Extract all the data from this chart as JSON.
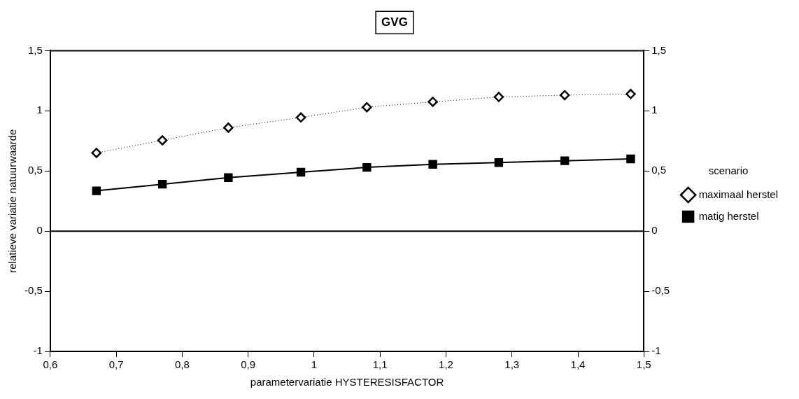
{
  "chart_data": {
    "type": "line",
    "title": "GVG",
    "xlabel": "parametervariatie HYSTERESISFACTOR",
    "ylabel": "relatieve variatie natuurwaarde",
    "legend_title": "scenario",
    "legend": "right",
    "grid": false,
    "x": [
      0.67,
      0.77,
      0.87,
      0.98,
      1.08,
      1.18,
      1.28,
      1.38,
      1.48
    ],
    "series": [
      {
        "name": "maximaal herstel",
        "color": "#000000",
        "marker": "diamond",
        "line_style": "dotted",
        "values": [
          0.65,
          0.755,
          0.86,
          0.945,
          1.03,
          1.075,
          1.115,
          1.13,
          1.14
        ]
      },
      {
        "name": "matig herstel",
        "color": "#000000",
        "marker": "square",
        "line_style": "solid",
        "values": [
          0.335,
          0.39,
          0.445,
          0.49,
          0.53,
          0.555,
          0.57,
          0.585,
          0.6
        ]
      }
    ],
    "xlim": [
      0.6,
      1.5
    ],
    "xticks": [
      {
        "value": 0.6,
        "label": "0,6"
      },
      {
        "value": 0.7,
        "label": "0,7"
      },
      {
        "value": 0.8,
        "label": "0,8"
      },
      {
        "value": 0.9,
        "label": "0,9"
      },
      1,
      {
        "value": 1.1,
        "label": "1,1"
      },
      {
        "value": 1.2,
        "label": "1,2"
      },
      {
        "value": 1.3,
        "label": "1,3"
      },
      {
        "value": 1.4,
        "label": "1,4"
      },
      {
        "value": 1.5,
        "label": "1,5"
      }
    ],
    "ylim": [
      -1,
      1.5
    ],
    "yticks": [
      -1,
      {
        "value": -0.5,
        "label": "-0,5"
      },
      0,
      {
        "value": 0.5,
        "label": "0,5"
      },
      1,
      {
        "value": 1.5,
        "label": "1,5"
      }
    ],
    "y2lim": [
      -1,
      1.5
    ],
    "y2ticks": [
      -1,
      {
        "value": -0.5,
        "label": "-0,5"
      },
      0,
      {
        "value": 0.5,
        "label": "0,5"
      },
      1,
      {
        "value": 1.5,
        "label": "1,5"
      }
    ],
    "ref_lines": [
      {
        "axis": "y",
        "value": 0,
        "color": "#000000"
      }
    ]
  }
}
